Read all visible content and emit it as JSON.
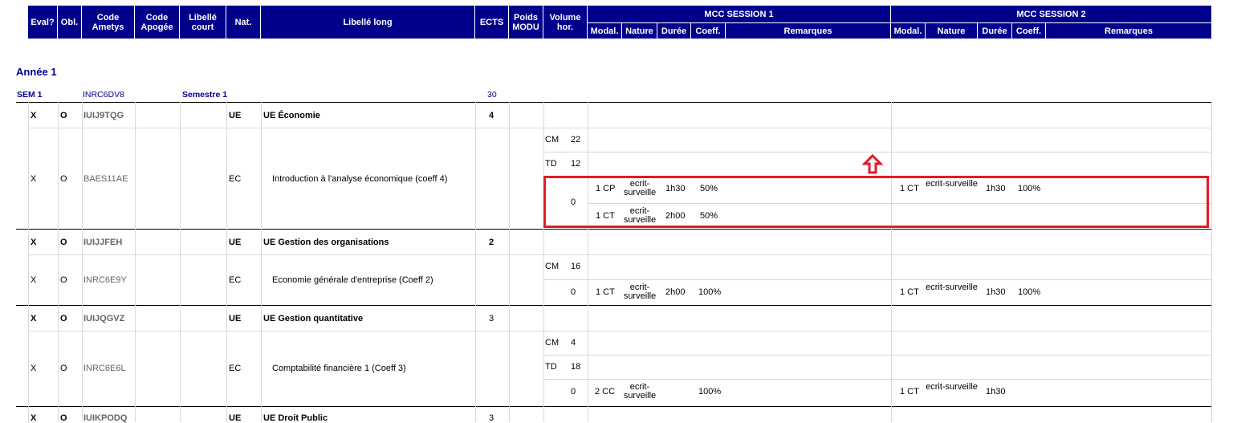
{
  "header": {
    "cols": [
      "Eval?",
      "Obl.",
      "Code Ametys",
      "Code Apogée",
      "Libellé court",
      "Nat.",
      "Libellé long",
      "ECTS",
      "Poids MODU",
      "Volume hor."
    ],
    "session1": "MCC SESSION 1",
    "session2": "MCC SESSION 2",
    "sub": [
      "Modal.",
      "Nature",
      "Durée",
      "Coeff.",
      "Remarques"
    ]
  },
  "year_title": "Année 1",
  "semester": {
    "label": "SEM 1",
    "code": "INRC6DV8",
    "name": "Semestre 1",
    "ects": "30"
  },
  "rows": [
    {
      "eval": "X",
      "obl": "O",
      "code": "IUIJ9TQG",
      "nat": "UE",
      "label": "UE Économie",
      "ects": "4"
    },
    {
      "eval": "X",
      "obl": "O",
      "code": "BAES11AE",
      "nat": "EC",
      "label": "Introduction à l'analyse économique (coeff 4)",
      "hours": [
        {
          "type": "CM",
          "value": "22"
        },
        {
          "type": "TD",
          "value": "12"
        }
      ],
      "zero": "0",
      "s1": [
        {
          "modal": "1 CP",
          "nature": "ecrit-surveille",
          "duree": "1h30",
          "coeff": "50%"
        },
        {
          "modal": "1 CT",
          "nature": "ecrit-surveille",
          "duree": "2h00",
          "coeff": "50%"
        }
      ],
      "s2": [
        {
          "modal": "1 CT",
          "nature": "ecrit-surveille",
          "duree": "1h30",
          "coeff": "100%"
        }
      ]
    },
    {
      "eval": "X",
      "obl": "O",
      "code": "IUIJJFEH",
      "nat": "UE",
      "label": "UE Gestion des organisations",
      "ects": "2"
    },
    {
      "eval": "X",
      "obl": "O",
      "code": "INRC6E9Y",
      "nat": "EC",
      "label": "Economie générale d'entreprise (Coeff 2)",
      "hours": [
        {
          "type": "CM",
          "value": "16"
        }
      ],
      "zero": "0",
      "s1": [
        {
          "modal": "1 CT",
          "nature": "ecrit-surveille",
          "duree": "2h00",
          "coeff": "100%"
        }
      ],
      "s2": [
        {
          "modal": "1 CT",
          "nature": "ecrit-surveille",
          "duree": "1h30",
          "coeff": "100%"
        }
      ]
    },
    {
      "eval": "X",
      "obl": "O",
      "code": "IUIJQGVZ",
      "nat": "UE",
      "label": "UE Gestion quantitative",
      "ects": "3"
    },
    {
      "eval": "X",
      "obl": "O",
      "code": "INRC6E6L",
      "nat": "EC",
      "label": "Comptabilité financière 1 (Coeff 3)",
      "hours": [
        {
          "type": "CM",
          "value": "4"
        },
        {
          "type": "TD",
          "value": "18"
        }
      ],
      "zero": "0",
      "s1": [
        {
          "modal": "2 CC",
          "nature": "ecrit-surveille",
          "duree": "",
          "coeff": "100%"
        }
      ],
      "s2": [
        {
          "modal": "1 CT",
          "nature": "ecrit-surveille",
          "duree": "1h30",
          "coeff": ""
        }
      ]
    },
    {
      "eval": "X",
      "obl": "O",
      "code": "IUIKPODQ",
      "nat": "UE",
      "label": "UE Droit Public",
      "ects": "3"
    }
  ],
  "colors": {
    "header_bg": "#00008b",
    "highlight": "#e21b25"
  },
  "icons": {
    "arrow": "up-arrow-icon"
  }
}
